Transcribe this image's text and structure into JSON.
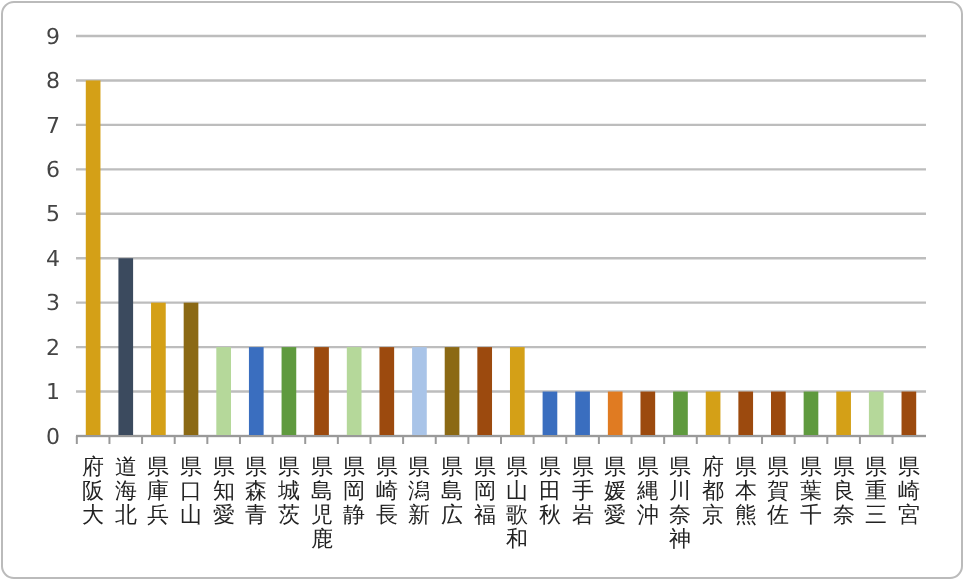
{
  "chart_data": {
    "type": "bar",
    "categories": [
      "大阪府",
      "北海道",
      "兵庫県",
      "山口県",
      "愛知県",
      "青森県",
      "茨城県",
      "鹿児島県",
      "静岡県",
      "長崎県",
      "新潟県",
      "広島県",
      "福岡県",
      "和歌山県",
      "秋田県",
      "岩手県",
      "愛媛県",
      "沖縄県",
      "神奈川県",
      "京都府",
      "熊本県",
      "佐賀県",
      "千葉県",
      "奈良県",
      "三重県",
      "宮崎県"
    ],
    "values": [
      8,
      4,
      3,
      3,
      2,
      2,
      2,
      2,
      2,
      2,
      2,
      2,
      2,
      2,
      1,
      1,
      1,
      1,
      1,
      1,
      1,
      1,
      1,
      1,
      1,
      1
    ],
    "colors": [
      "#d4a017",
      "#3b4a5e",
      "#d4a017",
      "#8b6914",
      "#b5d89a",
      "#3a6ebf",
      "#5f9a3e",
      "#9c4a0e",
      "#b5d89a",
      "#9c4a0e",
      "#a9c4e8",
      "#8b6914",
      "#9c4a0e",
      "#d4a017",
      "#3a6ebf",
      "#3a6ebf",
      "#e07b22",
      "#9c4a0e",
      "#5f9a3e",
      "#d4a017",
      "#9c4a0e",
      "#9c4a0e",
      "#5f9a3e",
      "#d4a017",
      "#b5d89a",
      "#9c4a0e"
    ],
    "ylim": [
      0,
      9
    ],
    "yticks": [
      0,
      1,
      2,
      3,
      4,
      5,
      6,
      7,
      8,
      9
    ],
    "grid": "y"
  }
}
